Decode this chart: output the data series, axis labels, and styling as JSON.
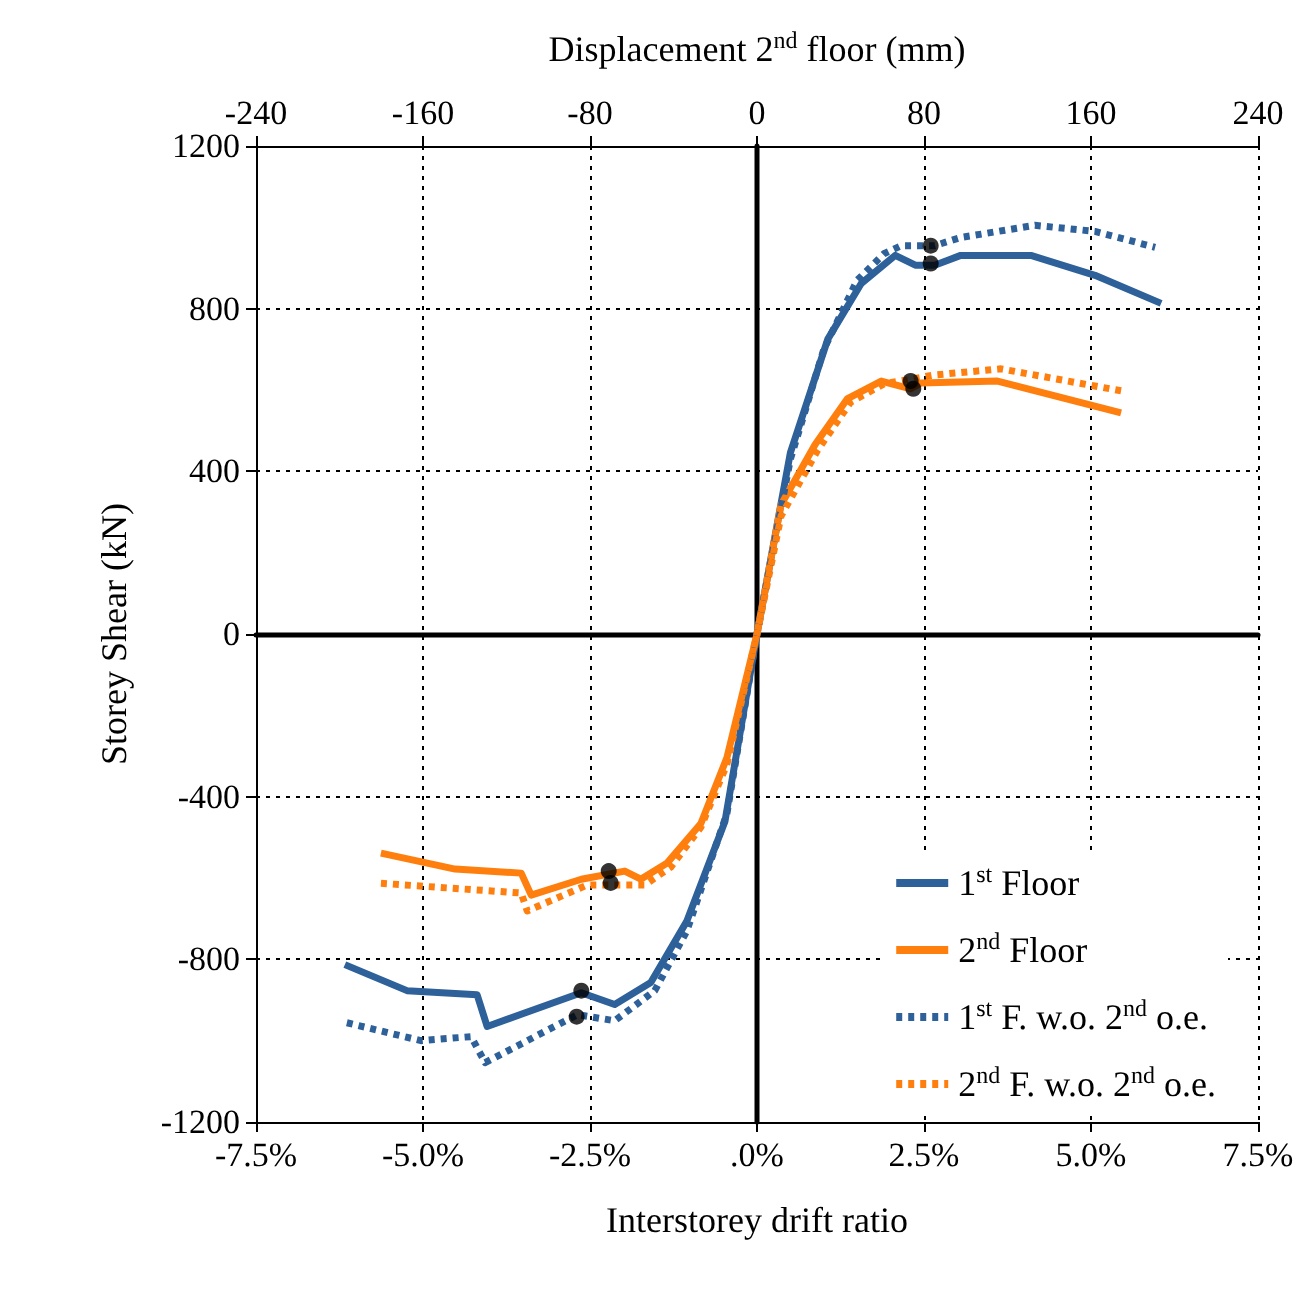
{
  "chart_data": {
    "type": "line",
    "xlabel": "Interstorey drift ratio",
    "ylabel": "Storey Shear (kN)",
    "x2label": "Displacement 2$^{nd}$ floor (mm)",
    "xlim": [
      -7.5,
      7.5
    ],
    "xticks": [
      {
        "value": -7.5,
        "label": "-7.5%"
      },
      {
        "value": -5,
        "label": "-5.0%"
      },
      {
        "value": -2.5,
        "label": "-2.5%"
      },
      {
        "value": 0,
        "label": ".0%"
      },
      {
        "value": 2.5,
        "label": "2.5%"
      },
      {
        "value": 5,
        "label": "5.0%"
      },
      {
        "value": 7.5,
        "label": "7.5%"
      }
    ],
    "x2lim": [
      -240,
      240
    ],
    "x2ticks": [
      -240,
      -160,
      -80,
      0,
      80,
      160,
      240
    ],
    "ylim": [
      -1200,
      1200
    ],
    "yticks": [
      -1200,
      -800,
      -400,
      0,
      400,
      800,
      1200
    ],
    "grid": true,
    "legend": "bottom right",
    "series": [
      {
        "name": "1$^{st}$ Floor",
        "color": "#2e6099",
        "line_style": "solid",
        "marker": "none",
        "x": [
          -6.17,
          -5.24,
          -4.19,
          -4.04,
          -2.63,
          -2.13,
          -1.59,
          -1.05,
          -0.48,
          0,
          0.5,
          1.06,
          1.56,
          2.07,
          2.37,
          2.66,
          3.05,
          4.1,
          5.06,
          6.05
        ],
        "values": [
          -813,
          -877,
          -887,
          -965,
          -882,
          -911,
          -857,
          -706,
          -461,
          0,
          446,
          725,
          862,
          931,
          907,
          907,
          931,
          931,
          882,
          813
        ]
      },
      {
        "name": "2$^{nd}$ Floor",
        "color": "#ff7f0e",
        "line_style": "solid",
        "marker": "none",
        "x": [
          -5.63,
          -4.52,
          -3.53,
          -3.38,
          -2.63,
          -1.98,
          -1.74,
          -1.35,
          -0.84,
          -0.45,
          0,
          0.36,
          0.87,
          1.35,
          1.86,
          2.3,
          2.45,
          3.6,
          5.45
        ],
        "values": [
          -539,
          -578,
          -588,
          -642,
          -603,
          -583,
          -603,
          -564,
          -466,
          -304,
          0,
          318,
          466,
          578,
          622,
          603,
          617,
          622,
          544
        ]
      },
      {
        "name": "1$^{st}$ F. w.o. 2$^{nd}$ o.e.",
        "color": "#2e6099",
        "line_style": "dotted",
        "marker": "none",
        "x": [
          -6.14,
          -5.03,
          -4.28,
          -4.07,
          -2.69,
          -2.13,
          -1.53,
          -1.05,
          -0.45,
          0,
          0.5,
          1.0,
          1.5,
          1.9,
          2.16,
          2.66,
          3.05,
          4.16,
          5.06,
          5.96
        ],
        "values": [
          -956,
          -1000,
          -990,
          -1054,
          -936,
          -951,
          -877,
          -730,
          -441,
          0,
          430,
          700,
          870,
          935,
          955,
          955,
          975,
          1005,
          990,
          951
        ]
      },
      {
        "name": "2$^{nd}$ F. w.o. 2$^{nd}$ o.e.",
        "color": "#ff7f0e",
        "line_style": "dotted",
        "marker": "none",
        "x": [
          -5.63,
          -3.53,
          -3.44,
          -2.54,
          -1.68,
          -1.29,
          -0.84,
          -0.45,
          0,
          0.36,
          0.9,
          1.4,
          1.9,
          2.66,
          3.65,
          5.45
        ],
        "values": [
          -613,
          -637,
          -681,
          -617,
          -617,
          -573,
          -475,
          -320,
          0,
          290,
          450,
          570,
          615,
          637,
          652,
          598
        ]
      },
      {
        "type": "scatter",
        "color": "#000000",
        "marker": "circle",
        "x": [
          2.6,
          2.6,
          2.3,
          2.34,
          -2.22,
          -2.19,
          -2.63,
          -2.7
        ],
        "values": [
          955,
          911,
          622,
          603,
          -583,
          -612,
          -877,
          -941
        ]
      }
    ]
  }
}
